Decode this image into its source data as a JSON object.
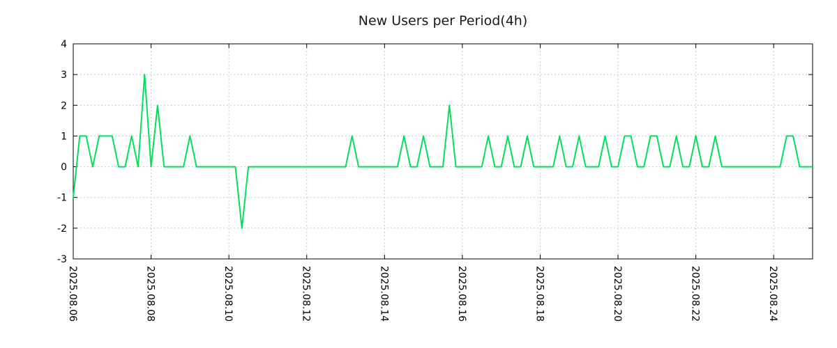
{
  "chart_data": {
    "type": "line",
    "title": "New Users per Period(4h)",
    "series_name": "new users per 4h period",
    "period_hours": 4,
    "x_start": "2025.08.06",
    "x_tick_labels": [
      "2025.08.06",
      "2025.08.08",
      "2025.08.10",
      "2025.08.12",
      "2025.08.14",
      "2025.08.16",
      "2025.08.18",
      "2025.08.20",
      "2025.08.22",
      "2025.08.24"
    ],
    "x_tick_indices": [
      0,
      12,
      24,
      36,
      48,
      60,
      72,
      84,
      96,
      108
    ],
    "x_index_span": 114,
    "values": [
      -1,
      1,
      1,
      0,
      1,
      1,
      1,
      0,
      0,
      1,
      0,
      3,
      0,
      2,
      0,
      0,
      0,
      0,
      1,
      0,
      0,
      0,
      0,
      0,
      0,
      0,
      -2,
      0,
      0,
      0,
      0,
      0,
      0,
      0,
      0,
      0,
      0,
      0,
      0,
      0,
      0,
      0,
      0,
      1,
      0,
      0,
      0,
      0,
      0,
      0,
      0,
      1,
      0,
      0,
      1,
      0,
      0,
      0,
      2,
      0,
      0,
      0,
      0,
      0,
      1,
      0,
      0,
      1,
      0,
      0,
      1,
      0,
      0,
      0,
      0,
      1,
      0,
      0,
      1,
      0,
      0,
      0,
      1,
      0,
      0,
      1,
      1,
      0,
      0,
      1,
      1,
      0,
      0,
      1,
      0,
      0,
      1,
      0,
      0,
      1,
      0,
      0,
      0,
      0,
      0,
      0,
      0,
      0,
      0,
      0,
      1,
      1,
      0,
      0,
      0
    ],
    "ylim": [
      -3,
      4
    ],
    "y_ticks": [
      -3,
      -2,
      -1,
      0,
      1,
      2,
      3,
      4
    ],
    "grid": "dashed",
    "legend": "none",
    "line_color": "#00e05a",
    "grid_color": "#c8c8c8",
    "axis_color": "#000000",
    "background": "#ffffff"
  }
}
